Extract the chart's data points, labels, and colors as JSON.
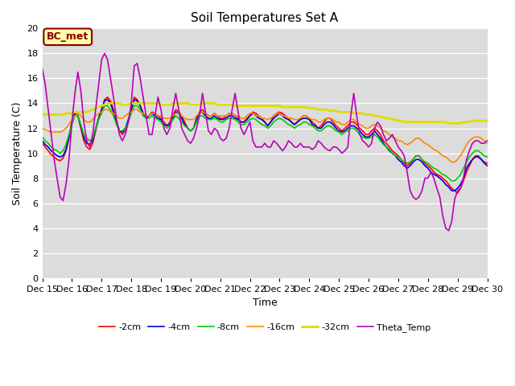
{
  "title": "Soil Temperatures Set A",
  "xlabel": "Time",
  "ylabel": "Soil Temperature (C)",
  "ylim": [
    0,
    20
  ],
  "xlim": [
    0,
    15
  ],
  "yticks": [
    0,
    2,
    4,
    6,
    8,
    10,
    12,
    14,
    16,
    18,
    20
  ],
  "xtick_labels": [
    "Dec 15",
    "Dec 16",
    "Dec 17",
    "Dec 18",
    "Dec 19",
    "Dec 20",
    "Dec 21",
    "Dec 22",
    "Dec 23",
    "Dec 24",
    "Dec 25",
    "Dec 26",
    "Dec 27",
    "Dec 28",
    "Dec 29",
    "Dec 30"
  ],
  "bg_color": "#dcdcdc",
  "fig_color": "#ffffff",
  "annotation_text": "BC_met",
  "annotation_bg": "#ffffaa",
  "annotation_border": "#8b0000",
  "series": {
    "neg2cm": {
      "label": "-2cm",
      "color": "#ff0000",
      "lw": 1.2
    },
    "neg4cm": {
      "label": "-4cm",
      "color": "#0000dd",
      "lw": 1.2
    },
    "neg8cm": {
      "label": "-8cm",
      "color": "#00cc00",
      "lw": 1.2
    },
    "neg16cm": {
      "label": "-16cm",
      "color": "#ff8800",
      "lw": 1.2
    },
    "neg32cm": {
      "label": "-32cm",
      "color": "#dddd00",
      "lw": 2.0
    },
    "theta": {
      "label": "Theta_Temp",
      "color": "#bb00bb",
      "lw": 1.2
    }
  },
  "x": [
    0.0,
    0.1,
    0.2,
    0.3,
    0.4,
    0.5,
    0.6,
    0.7,
    0.8,
    0.9,
    1.0,
    1.1,
    1.2,
    1.3,
    1.4,
    1.5,
    1.6,
    1.7,
    1.8,
    1.9,
    2.0,
    2.1,
    2.2,
    2.3,
    2.4,
    2.5,
    2.6,
    2.7,
    2.8,
    2.9,
    3.0,
    3.1,
    3.2,
    3.3,
    3.4,
    3.5,
    3.6,
    3.7,
    3.8,
    3.9,
    4.0,
    4.1,
    4.2,
    4.3,
    4.4,
    4.5,
    4.6,
    4.7,
    4.8,
    4.9,
    5.0,
    5.1,
    5.2,
    5.3,
    5.4,
    5.5,
    5.6,
    5.7,
    5.8,
    5.9,
    6.0,
    6.1,
    6.2,
    6.3,
    6.4,
    6.5,
    6.6,
    6.7,
    6.8,
    6.9,
    7.0,
    7.1,
    7.2,
    7.3,
    7.4,
    7.5,
    7.6,
    7.7,
    7.8,
    7.9,
    8.0,
    8.1,
    8.2,
    8.3,
    8.4,
    8.5,
    8.6,
    8.7,
    8.8,
    8.9,
    9.0,
    9.1,
    9.2,
    9.3,
    9.4,
    9.5,
    9.6,
    9.7,
    9.8,
    9.9,
    10.0,
    10.1,
    10.2,
    10.3,
    10.4,
    10.5,
    10.6,
    10.7,
    10.8,
    10.9,
    11.0,
    11.1,
    11.2,
    11.3,
    11.4,
    11.5,
    11.6,
    11.7,
    11.8,
    11.9,
    12.0,
    12.1,
    12.2,
    12.3,
    12.4,
    12.5,
    12.6,
    12.7,
    12.8,
    12.9,
    13.0,
    13.1,
    13.2,
    13.3,
    13.4,
    13.5,
    13.6,
    13.7,
    13.8,
    13.9,
    14.0,
    14.1,
    14.2,
    14.3,
    14.4,
    14.5,
    14.6,
    14.7,
    14.8,
    14.9,
    15.0
  ],
  "neg2cm_y": [
    10.8,
    10.5,
    10.2,
    9.9,
    9.7,
    9.5,
    9.4,
    9.6,
    10.2,
    11.2,
    12.5,
    13.2,
    13.0,
    12.0,
    11.0,
    10.5,
    10.3,
    10.8,
    11.8,
    12.8,
    13.5,
    14.3,
    14.5,
    14.2,
    13.5,
    12.5,
    11.8,
    11.5,
    11.8,
    12.5,
    13.5,
    14.5,
    14.3,
    13.8,
    13.2,
    12.8,
    13.0,
    13.3,
    13.2,
    13.0,
    12.8,
    12.5,
    12.2,
    12.5,
    13.0,
    13.5,
    13.3,
    13.0,
    12.5,
    12.0,
    11.8,
    12.0,
    12.8,
    13.3,
    13.5,
    13.2,
    13.0,
    13.0,
    13.2,
    13.0,
    12.8,
    12.8,
    13.0,
    13.2,
    13.2,
    13.0,
    12.8,
    12.5,
    12.5,
    12.8,
    13.0,
    13.3,
    13.2,
    13.0,
    12.8,
    12.5,
    12.2,
    12.5,
    13.0,
    13.2,
    13.3,
    13.2,
    13.0,
    12.8,
    12.5,
    12.3,
    12.5,
    12.8,
    13.0,
    13.0,
    12.8,
    12.5,
    12.3,
    12.0,
    12.2,
    12.5,
    12.8,
    12.8,
    12.5,
    12.2,
    12.0,
    11.8,
    12.0,
    12.2,
    12.5,
    12.5,
    12.3,
    12.0,
    11.8,
    11.5,
    11.5,
    11.8,
    12.0,
    11.8,
    11.5,
    11.0,
    10.8,
    10.5,
    10.2,
    10.0,
    9.8,
    9.5,
    9.2,
    9.0,
    9.2,
    9.5,
    9.8,
    9.8,
    9.5,
    9.2,
    9.0,
    8.8,
    8.5,
    8.3,
    8.2,
    8.0,
    7.8,
    7.5,
    7.2,
    7.0,
    6.8,
    7.2,
    7.8,
    8.5,
    9.0,
    9.5,
    9.8,
    9.8,
    9.5,
    9.3,
    9.2
  ],
  "neg4cm_y": [
    11.0,
    10.7,
    10.5,
    10.2,
    10.0,
    9.8,
    9.7,
    9.8,
    10.3,
    11.3,
    12.5,
    13.2,
    13.0,
    12.2,
    11.3,
    10.8,
    10.7,
    11.0,
    12.0,
    12.8,
    13.5,
    14.2,
    14.3,
    14.0,
    13.3,
    12.5,
    11.8,
    11.7,
    12.0,
    12.7,
    13.5,
    14.3,
    14.2,
    13.8,
    13.2,
    12.8,
    13.0,
    13.2,
    13.0,
    12.8,
    12.7,
    12.3,
    12.2,
    12.3,
    12.8,
    13.3,
    13.2,
    12.8,
    12.3,
    12.0,
    11.8,
    12.0,
    12.7,
    13.2,
    13.3,
    13.0,
    12.8,
    12.8,
    13.0,
    12.8,
    12.7,
    12.7,
    12.8,
    13.0,
    13.0,
    12.8,
    12.7,
    12.5,
    12.5,
    12.7,
    13.0,
    13.2,
    13.0,
    12.8,
    12.7,
    12.5,
    12.2,
    12.5,
    12.8,
    13.0,
    13.2,
    13.0,
    12.8,
    12.7,
    12.5,
    12.3,
    12.5,
    12.7,
    12.8,
    12.8,
    12.7,
    12.3,
    12.2,
    12.0,
    12.0,
    12.3,
    12.5,
    12.5,
    12.3,
    12.0,
    11.8,
    11.7,
    11.8,
    12.0,
    12.2,
    12.2,
    12.0,
    11.8,
    11.5,
    11.3,
    11.3,
    11.5,
    11.8,
    11.5,
    11.2,
    10.8,
    10.5,
    10.2,
    10.0,
    9.8,
    9.5,
    9.3,
    9.0,
    8.8,
    9.0,
    9.3,
    9.5,
    9.5,
    9.3,
    9.0,
    8.8,
    8.5,
    8.3,
    8.2,
    8.0,
    7.8,
    7.5,
    7.3,
    7.0,
    7.0,
    7.2,
    7.5,
    8.0,
    8.8,
    9.2,
    9.5,
    9.7,
    9.7,
    9.5,
    9.2,
    9.0
  ],
  "neg8cm_y": [
    11.3,
    11.0,
    10.8,
    10.5,
    10.3,
    10.2,
    10.0,
    10.2,
    10.7,
    11.5,
    12.3,
    13.0,
    13.0,
    12.3,
    11.5,
    11.2,
    11.0,
    11.2,
    12.0,
    12.7,
    13.2,
    13.8,
    13.8,
    13.5,
    13.0,
    12.3,
    11.8,
    11.8,
    12.0,
    12.5,
    13.2,
    13.8,
    13.8,
    13.5,
    13.0,
    12.8,
    12.8,
    13.0,
    12.8,
    12.7,
    12.5,
    12.2,
    12.0,
    12.2,
    12.7,
    13.0,
    12.8,
    12.5,
    12.2,
    12.0,
    11.8,
    12.0,
    12.5,
    13.0,
    13.0,
    12.8,
    12.7,
    12.7,
    12.8,
    12.7,
    12.5,
    12.5,
    12.7,
    12.8,
    12.8,
    12.7,
    12.5,
    12.3,
    12.3,
    12.5,
    12.7,
    12.8,
    12.7,
    12.5,
    12.3,
    12.2,
    12.0,
    12.2,
    12.5,
    12.7,
    12.8,
    12.7,
    12.5,
    12.3,
    12.2,
    12.0,
    12.2,
    12.3,
    12.5,
    12.5,
    12.3,
    12.2,
    12.0,
    11.8,
    11.8,
    12.0,
    12.2,
    12.2,
    12.0,
    11.8,
    11.7,
    11.5,
    11.7,
    11.8,
    12.0,
    12.0,
    11.8,
    11.5,
    11.3,
    11.2,
    11.2,
    11.3,
    11.5,
    11.3,
    11.0,
    10.7,
    10.5,
    10.3,
    10.0,
    9.8,
    9.7,
    9.5,
    9.3,
    9.2,
    9.3,
    9.5,
    9.8,
    9.8,
    9.5,
    9.3,
    9.2,
    9.0,
    8.8,
    8.7,
    8.5,
    8.3,
    8.2,
    8.0,
    7.8,
    7.8,
    8.0,
    8.3,
    8.8,
    9.3,
    9.7,
    10.0,
    10.2,
    10.2,
    10.0,
    9.8,
    9.7
  ],
  "neg16cm_y": [
    12.0,
    11.9,
    11.8,
    11.7,
    11.7,
    11.7,
    11.7,
    11.8,
    12.0,
    12.3,
    12.7,
    13.0,
    13.2,
    13.0,
    12.7,
    12.5,
    12.5,
    12.7,
    13.0,
    13.2,
    13.3,
    13.5,
    13.5,
    13.3,
    13.2,
    13.0,
    12.8,
    12.8,
    13.0,
    13.2,
    13.3,
    13.5,
    13.5,
    13.3,
    13.2,
    13.0,
    13.0,
    13.2,
    13.2,
    13.0,
    13.0,
    12.8,
    12.8,
    12.8,
    13.0,
    13.2,
    13.2,
    13.0,
    12.8,
    12.7,
    12.7,
    12.7,
    13.0,
    13.2,
    13.3,
    13.2,
    13.0,
    13.0,
    13.2,
    13.0,
    13.0,
    13.0,
    13.0,
    13.2,
    13.2,
    13.0,
    13.0,
    12.8,
    12.8,
    13.0,
    13.2,
    13.2,
    13.0,
    13.0,
    12.8,
    12.8,
    12.7,
    12.8,
    13.0,
    13.2,
    13.2,
    13.0,
    13.0,
    12.8,
    12.8,
    12.7,
    12.7,
    12.8,
    13.0,
    13.0,
    12.8,
    12.7,
    12.7,
    12.5,
    12.5,
    12.7,
    12.8,
    12.8,
    12.7,
    12.5,
    12.5,
    12.3,
    12.3,
    12.5,
    12.7,
    12.7,
    12.5,
    12.3,
    12.2,
    12.0,
    12.0,
    12.2,
    12.3,
    12.2,
    12.0,
    11.8,
    11.7,
    11.5,
    11.3,
    11.2,
    11.0,
    11.0,
    10.8,
    10.7,
    10.8,
    11.0,
    11.2,
    11.2,
    11.0,
    10.8,
    10.7,
    10.5,
    10.3,
    10.2,
    10.0,
    9.8,
    9.7,
    9.5,
    9.3,
    9.3,
    9.5,
    9.8,
    10.2,
    10.7,
    11.0,
    11.2,
    11.3,
    11.3,
    11.2,
    11.0,
    10.8
  ],
  "neg32cm_y": [
    13.1,
    13.1,
    13.1,
    13.1,
    13.1,
    13.1,
    13.1,
    13.1,
    13.2,
    13.2,
    13.2,
    13.3,
    13.3,
    13.3,
    13.3,
    13.3,
    13.4,
    13.5,
    13.6,
    13.7,
    13.8,
    13.9,
    14.0,
    14.0,
    14.0,
    14.0,
    14.0,
    13.9,
    13.9,
    13.9,
    14.0,
    14.0,
    14.0,
    14.0,
    14.0,
    14.0,
    14.0,
    14.0,
    14.0,
    14.0,
    13.9,
    13.9,
    13.9,
    13.9,
    14.0,
    14.0,
    14.0,
    14.0,
    14.0,
    14.0,
    13.9,
    13.9,
    13.9,
    13.9,
    14.0,
    14.0,
    14.0,
    14.0,
    14.0,
    13.9,
    13.9,
    13.9,
    13.9,
    13.9,
    13.9,
    13.8,
    13.8,
    13.8,
    13.8,
    13.8,
    13.8,
    13.8,
    13.8,
    13.8,
    13.8,
    13.8,
    13.8,
    13.8,
    13.8,
    13.8,
    13.8,
    13.7,
    13.7,
    13.7,
    13.7,
    13.7,
    13.7,
    13.7,
    13.7,
    13.7,
    13.6,
    13.6,
    13.6,
    13.5,
    13.5,
    13.5,
    13.5,
    13.4,
    13.4,
    13.4,
    13.3,
    13.3,
    13.3,
    13.3,
    13.3,
    13.2,
    13.2,
    13.2,
    13.2,
    13.1,
    13.1,
    13.1,
    13.0,
    13.0,
    12.9,
    12.9,
    12.8,
    12.8,
    12.7,
    12.7,
    12.6,
    12.6,
    12.5,
    12.5,
    12.5,
    12.5,
    12.5,
    12.5,
    12.5,
    12.5,
    12.5,
    12.5,
    12.5,
    12.5,
    12.5,
    12.5,
    12.5,
    12.4,
    12.4,
    12.4,
    12.4,
    12.4,
    12.5,
    12.5,
    12.5,
    12.6,
    12.6,
    12.6,
    12.6,
    12.6,
    12.6
  ],
  "theta_y": [
    16.8,
    15.5,
    13.5,
    11.5,
    9.5,
    8.0,
    6.5,
    6.2,
    7.5,
    9.5,
    12.5,
    14.8,
    16.5,
    15.0,
    12.5,
    11.0,
    10.5,
    11.5,
    13.5,
    15.5,
    17.5,
    18.0,
    17.5,
    16.0,
    14.5,
    12.8,
    11.5,
    11.0,
    11.5,
    12.5,
    14.0,
    17.0,
    17.2,
    16.0,
    14.5,
    13.0,
    11.5,
    11.5,
    13.0,
    14.5,
    13.5,
    12.0,
    11.5,
    12.0,
    13.5,
    14.8,
    13.5,
    12.0,
    11.5,
    11.0,
    10.8,
    11.2,
    12.0,
    13.0,
    14.8,
    13.3,
    11.8,
    11.5,
    12.0,
    11.8,
    11.2,
    11.0,
    11.2,
    12.0,
    13.5,
    14.8,
    13.3,
    12.0,
    11.5,
    12.0,
    12.5,
    11.0,
    10.5,
    10.5,
    10.5,
    10.8,
    10.5,
    10.5,
    11.0,
    10.8,
    10.5,
    10.2,
    10.5,
    11.0,
    10.8,
    10.5,
    10.5,
    10.8,
    10.5,
    10.5,
    10.5,
    10.3,
    10.5,
    11.0,
    10.8,
    10.5,
    10.3,
    10.2,
    10.5,
    10.5,
    10.3,
    10.0,
    10.2,
    10.5,
    13.0,
    14.8,
    13.0,
    11.5,
    11.0,
    10.8,
    10.5,
    10.8,
    12.0,
    12.5,
    12.2,
    11.5,
    11.0,
    11.2,
    11.5,
    11.0,
    10.5,
    10.2,
    9.8,
    8.5,
    7.0,
    6.5,
    6.3,
    6.5,
    7.0,
    8.0,
    8.0,
    8.5,
    8.0,
    7.2,
    6.5,
    5.0,
    4.0,
    3.8,
    4.5,
    6.3,
    7.0,
    7.2,
    8.0,
    9.5,
    10.2,
    10.8,
    11.0,
    11.0,
    10.8,
    10.8,
    11.0
  ]
}
